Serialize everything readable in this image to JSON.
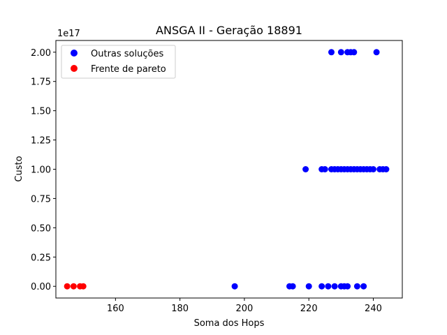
{
  "chart_data": {
    "type": "scatter",
    "title": "ANSGA II - Geração 18891",
    "xlabel": "Soma dos Hops",
    "ylabel": "Custo",
    "y_offset_text": "1e17",
    "xlim": [
      141.5,
      249.0
    ],
    "ylim": [
      -0.1,
      2.1
    ],
    "y_unit_scale": 1e+17,
    "x_ticks": [
      160,
      180,
      200,
      220,
      240
    ],
    "x_tick_labels": [
      "160",
      "180",
      "200",
      "220",
      "240"
    ],
    "y_ticks": [
      0.0,
      0.25,
      0.5,
      0.75,
      1.0,
      1.25,
      1.5,
      1.75,
      2.0
    ],
    "y_tick_labels": [
      "0.00",
      "0.25",
      "0.50",
      "0.75",
      "1.00",
      "1.25",
      "1.50",
      "1.75",
      "2.00"
    ],
    "grid": false,
    "legend_position": "top-left",
    "series": [
      {
        "name": "Outras soluções",
        "color": "#0000ff",
        "x": [
          227,
          230,
          232,
          233,
          234,
          241,
          219,
          224,
          225,
          227,
          228,
          229,
          230,
          231,
          232,
          233,
          234,
          235,
          236,
          237,
          238,
          239,
          240,
          242,
          243,
          244,
          197,
          214,
          215,
          220,
          224,
          226,
          228,
          230,
          231,
          232,
          235,
          237
        ],
        "y": [
          2,
          2,
          2,
          2,
          2,
          2,
          1,
          1,
          1,
          1,
          1,
          1,
          1,
          1,
          1,
          1,
          1,
          1,
          1,
          1,
          1,
          1,
          1,
          1,
          1,
          1,
          0,
          0,
          0,
          0,
          0,
          0,
          0,
          0,
          0,
          0,
          0,
          0
        ]
      },
      {
        "name": "Frente de pareto",
        "color": "#ff0000",
        "x": [
          145,
          147,
          149,
          150
        ],
        "y": [
          0,
          0,
          0,
          0
        ]
      }
    ]
  }
}
